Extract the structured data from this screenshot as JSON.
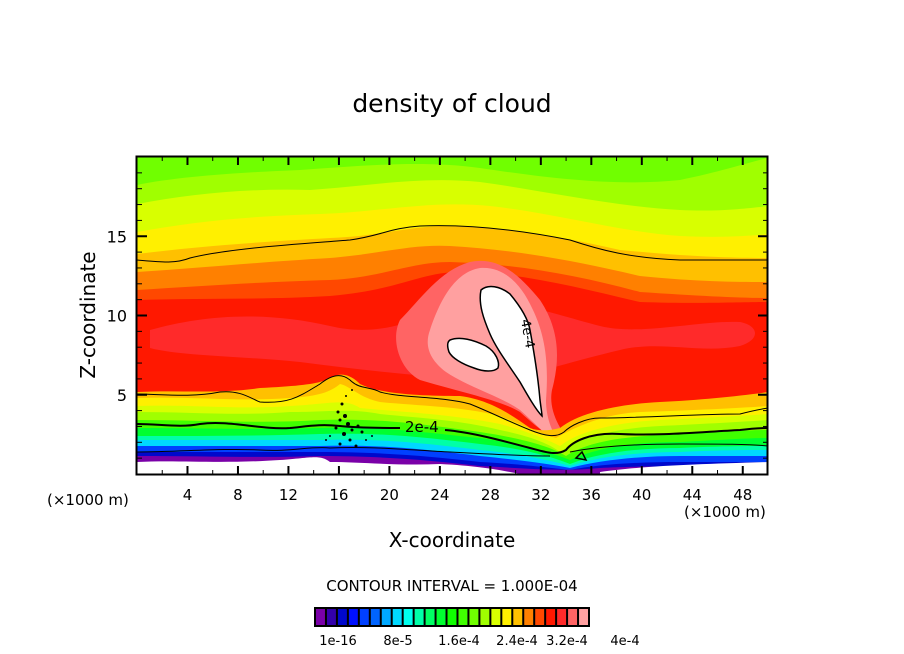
{
  "chart_data": {
    "type": "heatmap",
    "subtype": "filled-contour",
    "title": "density of cloud",
    "xlabel": "X-coordinate",
    "ylabel": "Z-coordinate",
    "x_unit_left": "(×1000 m)",
    "x_unit_right": "(×1000 m)",
    "xlim": [
      0,
      50
    ],
    "ylim": [
      0,
      20
    ],
    "x_ticks": [
      4,
      8,
      12,
      16,
      20,
      24,
      28,
      32,
      36,
      40,
      44,
      48
    ],
    "x_tick_labels": [
      "4",
      "8",
      "12",
      "16",
      "20",
      "24",
      "28",
      "32",
      "36",
      "40",
      "44",
      "48"
    ],
    "x_minor_step": 2,
    "y_ticks": [
      5,
      10,
      15
    ],
    "y_tick_labels": [
      "5",
      "10",
      "15"
    ],
    "y_minor_step": 1,
    "contour_interval_text": "CONTOUR INTERVAL = 1.000E-04",
    "contour_line_labels": [
      "2e-4",
      "4e-4"
    ],
    "contour_levels": [
      0.0001,
      0.0002,
      0.0003,
      0.0004
    ],
    "colorbar": {
      "colors": [
        "#7a00a8",
        "#3300aa",
        "#0008cc",
        "#0010ff",
        "#0040ff",
        "#0064ff",
        "#00a8ff",
        "#00d8ff",
        "#00ffee",
        "#00ffa8",
        "#00ff64",
        "#00ff30",
        "#10ff00",
        "#40ff00",
        "#70ff00",
        "#a0ff00",
        "#d8ff00",
        "#fff000",
        "#ffc000",
        "#ff8000",
        "#ff4800",
        "#ff1800",
        "#ff2a2a",
        "#ff6464",
        "#ffa0a0"
      ],
      "tick_labels": [
        "1e-16",
        "8e-5",
        "1.6e-4",
        "2.4e-4",
        "3.2e-4",
        "4e-4"
      ],
      "range": [
        1e-16,
        0.0004
      ]
    }
  }
}
